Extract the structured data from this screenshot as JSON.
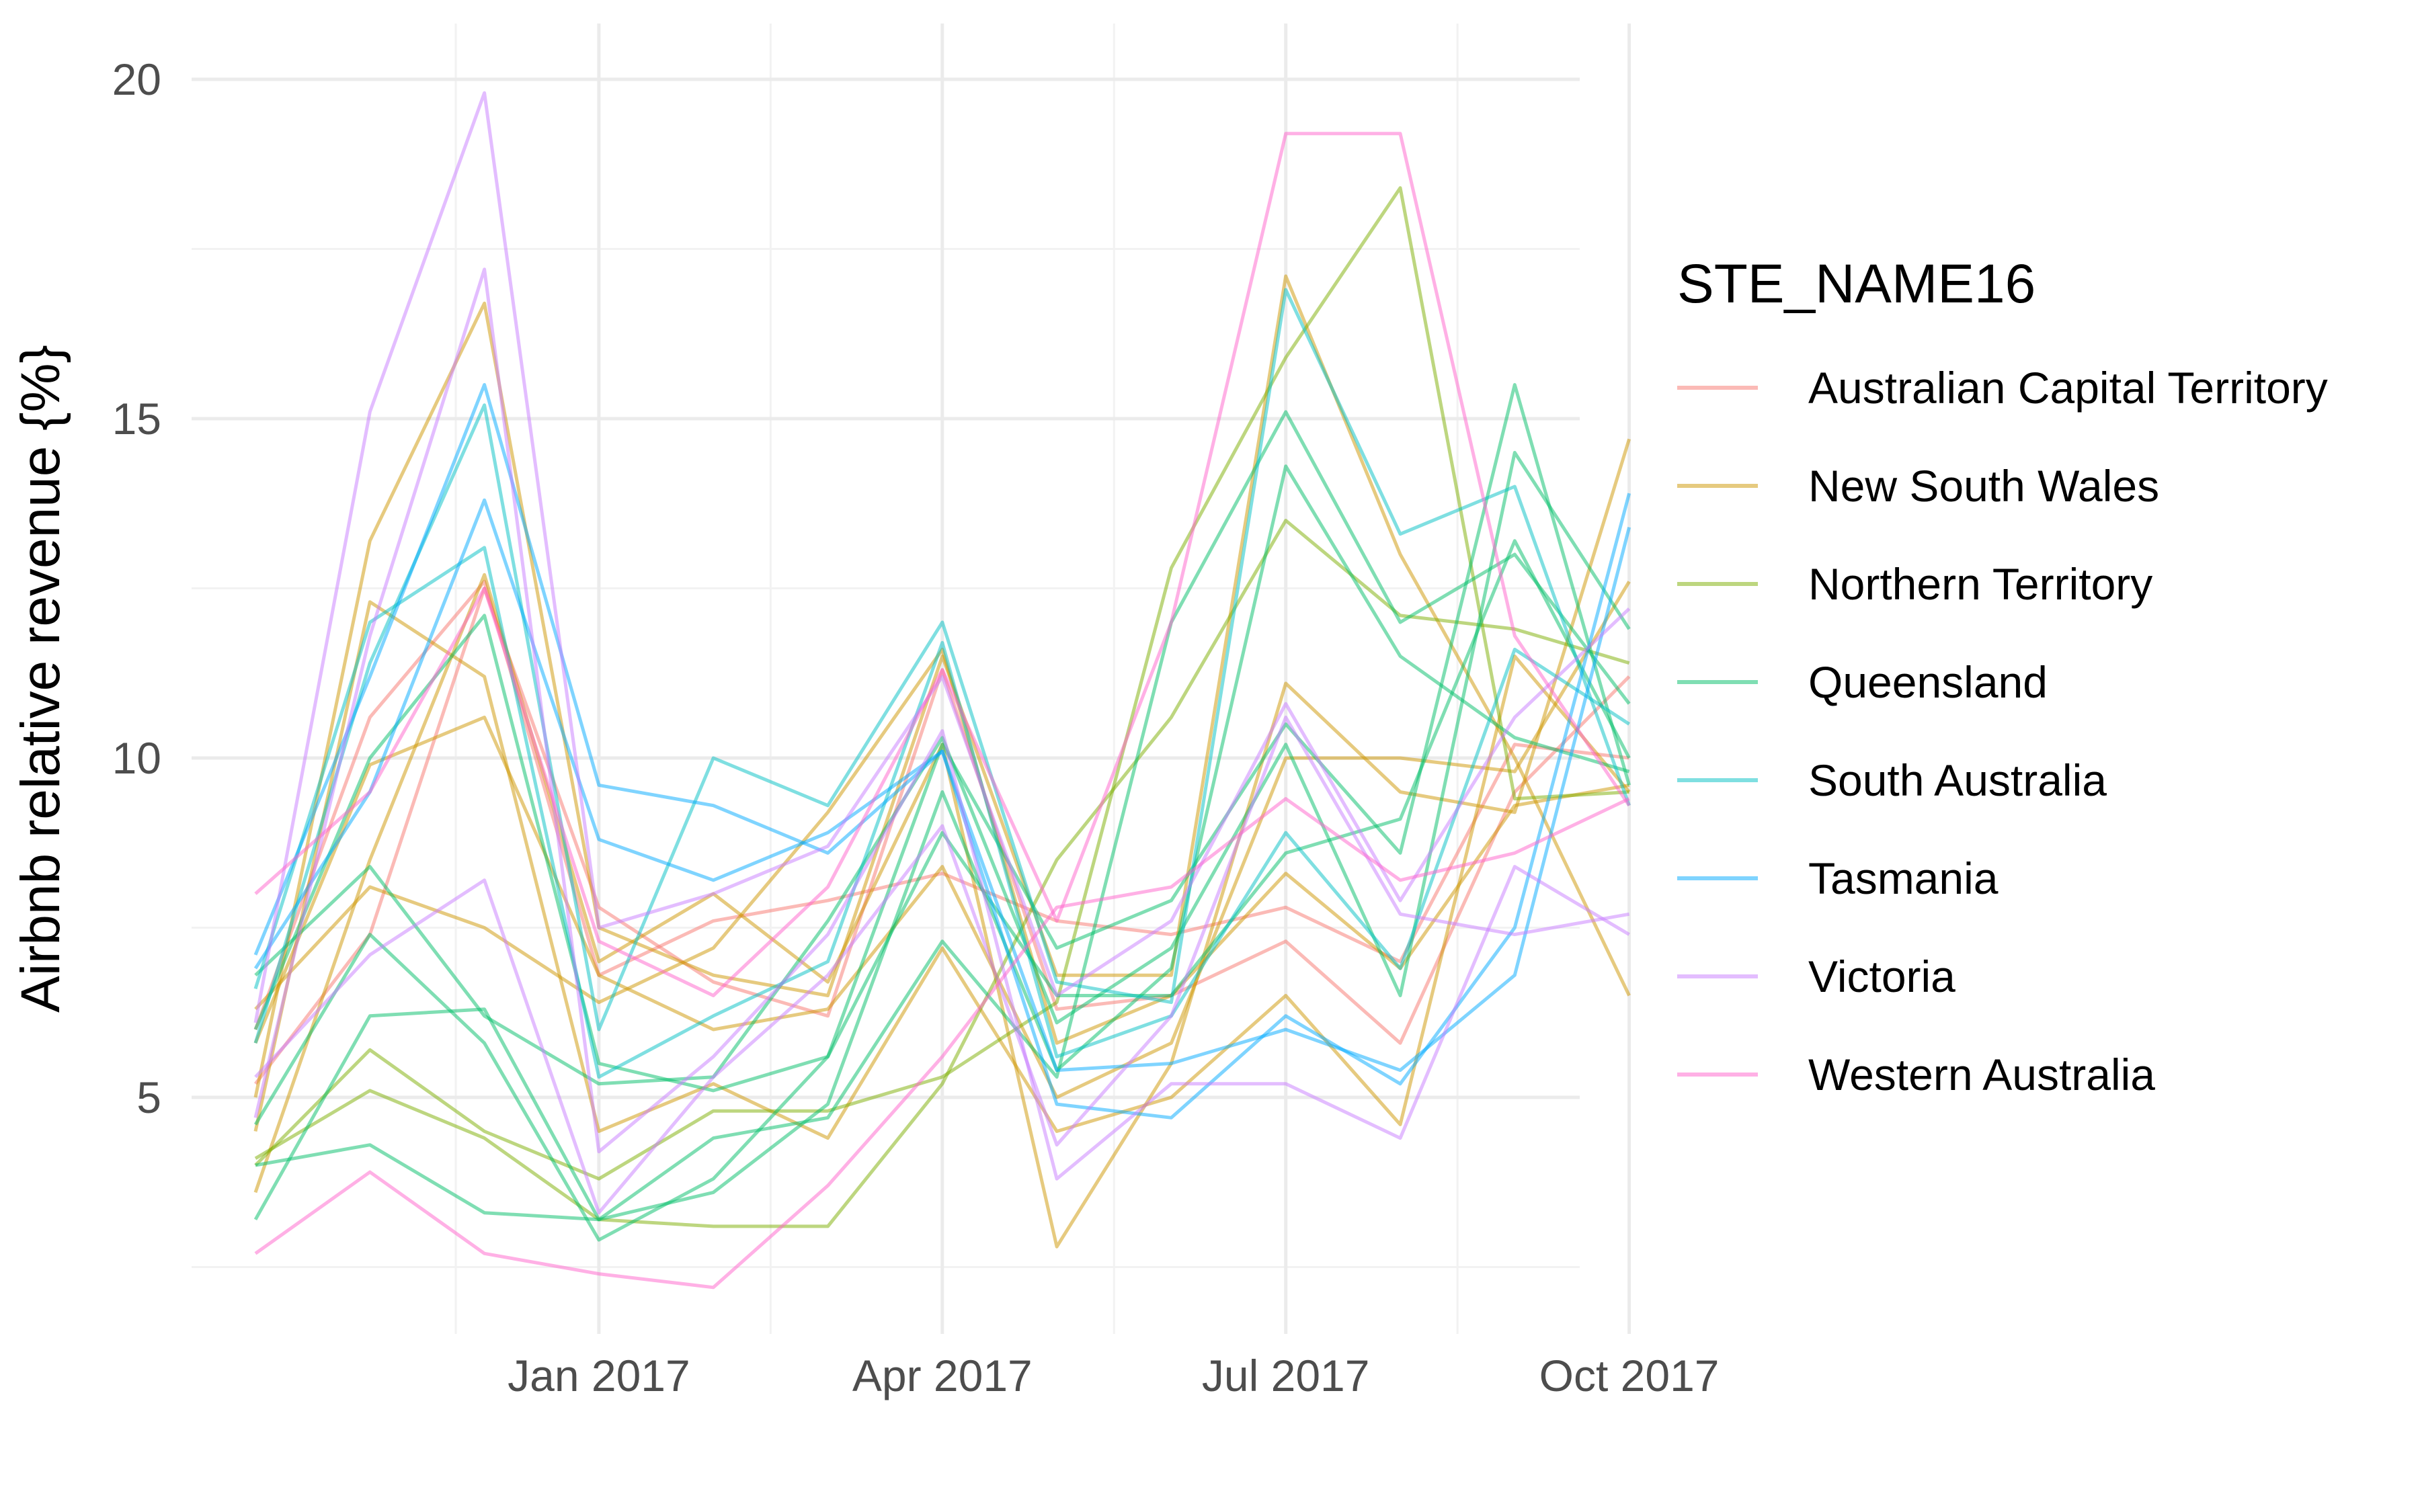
{
  "chart_data": {
    "type": "line",
    "ylabel": "Airbnb relative revenue {%}",
    "xlabel": "",
    "title": "",
    "x": [
      "2016-10",
      "2016-11",
      "2016-12",
      "2017-01",
      "2017-02",
      "2017-03",
      "2017-04",
      "2017-05",
      "2017-06",
      "2017-07",
      "2017-08",
      "2017-09",
      "2017-10"
    ],
    "x_ticks": [
      {
        "x": "2017-01",
        "label": "Jan 2017"
      },
      {
        "x": "2017-04",
        "label": "Apr 2017"
      },
      {
        "x": "2017-07",
        "label": "Jul 2017"
      },
      {
        "x": "2017-10",
        "label": "Oct 2017"
      }
    ],
    "y_ticks": [
      5,
      10,
      15,
      20
    ],
    "ylim": [
      1.5,
      20.8
    ],
    "grid": true,
    "legend_position": "right",
    "legend_title": "STE_NAME16",
    "groups": [
      {
        "name": "Australian Capital Territory",
        "color": "#F8766D"
      },
      {
        "name": "New South Wales",
        "color": "#CD9600"
      },
      {
        "name": "Northern Territory",
        "color": "#7CAE00"
      },
      {
        "name": "Queensland",
        "color": "#00BE67"
      },
      {
        "name": "South Australia",
        "color": "#00BFC4"
      },
      {
        "name": "Tasmania",
        "color": "#00A9FF"
      },
      {
        "name": "Victoria",
        "color": "#C77CFF"
      },
      {
        "name": "Western Australia",
        "color": "#FF61CC"
      }
    ],
    "series": [
      {
        "group": "Australian Capital Territory",
        "values": [
          5.2,
          7.4,
          12.5,
          7.8,
          6.7,
          6.2,
          11.3,
          6.3,
          6.5,
          7.3,
          5.8,
          9.5,
          11.2
        ]
      },
      {
        "group": "Australian Capital Territory",
        "values": [
          6.0,
          10.6,
          12.6,
          6.8,
          7.6,
          7.9,
          8.3,
          7.6,
          7.4,
          7.8,
          7.0,
          10.2,
          10.0
        ]
      },
      {
        "group": "New South Wales",
        "values": [
          5.0,
          13.2,
          16.7,
          7.5,
          6.8,
          6.5,
          11.5,
          6.8,
          6.8,
          17.1,
          13.0,
          10.0,
          6.5
        ]
      },
      {
        "group": "New South Wales",
        "values": [
          3.6,
          8.5,
          12.7,
          7.0,
          8.0,
          6.7,
          10.2,
          2.8,
          5.5,
          11.1,
          9.5,
          9.2,
          14.7
        ]
      },
      {
        "group": "New South Wales",
        "values": [
          4.5,
          12.3,
          11.2,
          4.5,
          5.2,
          4.4,
          7.2,
          4.5,
          5.0,
          6.5,
          4.6,
          11.5,
          9.5
        ]
      },
      {
        "group": "New South Wales",
        "values": [
          5.8,
          9.9,
          10.6,
          6.8,
          6.0,
          6.3,
          8.4,
          5.0,
          5.8,
          10.0,
          10.0,
          9.8,
          12.6
        ]
      },
      {
        "group": "New South Wales",
        "values": [
          6.3,
          8.1,
          7.5,
          6.4,
          7.2,
          9.2,
          11.6,
          5.8,
          6.5,
          8.3,
          6.9,
          9.3,
          9.6
        ]
      },
      {
        "group": "Northern Territory",
        "values": [
          4.0,
          5.7,
          4.5,
          3.8,
          4.8,
          4.8,
          5.3,
          6.4,
          12.8,
          15.9,
          18.4,
          9.4,
          9.5
        ]
      },
      {
        "group": "Northern Territory",
        "values": [
          4.1,
          5.1,
          4.4,
          3.2,
          3.1,
          3.1,
          5.2,
          8.5,
          10.6,
          13.5,
          12.1,
          11.9,
          11.4
        ]
      },
      {
        "group": "Queensland",
        "values": [
          6.0,
          10.0,
          12.1,
          5.5,
          5.1,
          5.6,
          10.2,
          7.2,
          7.9,
          10.5,
          8.6,
          15.5,
          9.6
        ]
      },
      {
        "group": "Queensland",
        "values": [
          3.2,
          6.2,
          6.3,
          3.2,
          4.4,
          4.7,
          7.3,
          5.3,
          12.0,
          15.1,
          12.0,
          13.0,
          10.8
        ]
      },
      {
        "group": "Queensland",
        "values": [
          4.0,
          4.3,
          3.3,
          3.2,
          3.6,
          4.9,
          9.5,
          5.4,
          6.9,
          14.3,
          11.5,
          10.3,
          9.8
        ]
      },
      {
        "group": "Queensland",
        "values": [
          4.6,
          7.4,
          5.8,
          2.9,
          3.8,
          5.6,
          8.9,
          6.5,
          6.5,
          8.6,
          9.1,
          13.2,
          10.0
        ]
      },
      {
        "group": "Queensland",
        "values": [
          6.8,
          8.4,
          6.2,
          5.2,
          5.3,
          7.6,
          10.3,
          6.1,
          7.2,
          10.2,
          6.5,
          14.5,
          11.9
        ]
      },
      {
        "group": "South Australia",
        "values": [
          5.8,
          11.4,
          15.2,
          6.0,
          10.0,
          9.3,
          12.0,
          6.7,
          6.4,
          16.9,
          13.3,
          14.0,
          9.3
        ]
      },
      {
        "group": "South Australia",
        "values": [
          6.6,
          12.0,
          13.1,
          5.3,
          6.2,
          7.0,
          11.7,
          5.6,
          6.2,
          8.9,
          6.9,
          11.6,
          10.5
        ]
      },
      {
        "group": "Tasmania",
        "values": [
          7.1,
          11.2,
          15.5,
          9.6,
          9.3,
          8.6,
          10.1,
          4.9,
          4.7,
          6.2,
          5.2,
          7.5,
          13.9
        ]
      },
      {
        "group": "Tasmania",
        "values": [
          6.9,
          9.5,
          13.8,
          8.8,
          8.2,
          8.9,
          10.1,
          5.4,
          5.5,
          6.0,
          5.4,
          6.8,
          13.4
        ]
      },
      {
        "group": "Victoria",
        "values": [
          6.1,
          15.1,
          19.8,
          7.5,
          8.0,
          8.7,
          11.2,
          6.5,
          7.6,
          10.8,
          7.9,
          10.6,
          12.2
        ]
      },
      {
        "group": "Victoria",
        "values": [
          4.7,
          11.8,
          17.2,
          4.2,
          5.6,
          7.4,
          10.4,
          3.8,
          5.2,
          5.2,
          4.4,
          8.4,
          7.4
        ]
      },
      {
        "group": "Victoria",
        "values": [
          5.3,
          7.1,
          8.2,
          3.3,
          5.3,
          6.8,
          9.0,
          4.3,
          6.2,
          10.6,
          7.7,
          7.4,
          7.7
        ]
      },
      {
        "group": "Western Australia",
        "values": [
          8.0,
          9.5,
          12.5,
          7.3,
          6.5,
          8.1,
          11.3,
          7.6,
          12.0,
          19.2,
          19.2,
          11.8,
          9.3
        ]
      },
      {
        "group": "Western Australia",
        "values": [
          2.7,
          3.9,
          2.7,
          2.4,
          2.2,
          3.7,
          5.6,
          7.8,
          8.1,
          9.4,
          8.2,
          8.6,
          9.4
        ]
      }
    ]
  }
}
